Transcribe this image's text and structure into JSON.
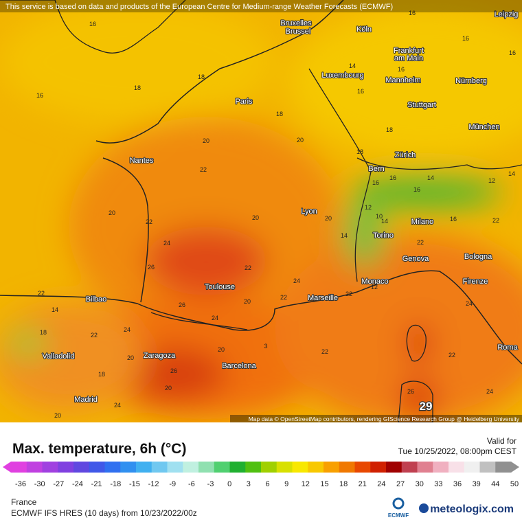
{
  "banner": "This service is based on data and products of the European Centre for Medium-range Weather Forecasts (ECMWF)",
  "attribution": "Map data © OpenStreetMap contributors, rendering GIScience Research Group @ Heidelberg University",
  "cities": [
    "Bruxelles",
    "Brussel",
    "Köln",
    "Leipzig",
    "Frankfurt",
    "am Main",
    "Luxembourg",
    "Mannheim",
    "Nürnberg",
    "Paris",
    "Stuttgart",
    "München",
    "Nantes",
    "Zürich",
    "Bern",
    "Lyon",
    "Milano",
    "Torino",
    "Bologna",
    "Genova",
    "Toulouse",
    "Monaco",
    "Marseille",
    "Firenze",
    "Bilbao",
    "Valladolid",
    "Zaragoza",
    "Barcelona",
    "Roma",
    "Madrid"
  ],
  "map_values": [
    16,
    16,
    18,
    18,
    18,
    20,
    20,
    22,
    22,
    20,
    24,
    26,
    22,
    20,
    20,
    24,
    22,
    20,
    26,
    24,
    22,
    14,
    18,
    22,
    24,
    20,
    18,
    26,
    20,
    3,
    22,
    22,
    22,
    22,
    16,
    12,
    22,
    16,
    16,
    16,
    14,
    16,
    16,
    18,
    18,
    16,
    16,
    14,
    12,
    14,
    16,
    10,
    14,
    14,
    12,
    24,
    24,
    24,
    20,
    26,
    20
  ],
  "highlight_value": 29,
  "title": "Max. temperature, 6h (°C)",
  "valid_label": "Valid for",
  "valid_time": "Tue 10/25/2022, 08:00pm CEST",
  "legend": {
    "ticks": [
      -36,
      -30,
      -27,
      -24,
      -21,
      -18,
      -15,
      -12,
      -9,
      -6,
      -3,
      0,
      3,
      6,
      9,
      12,
      15,
      18,
      21,
      24,
      27,
      30,
      33,
      36,
      39,
      44,
      50
    ],
    "colors": [
      "#e040e0",
      "#c040e0",
      "#a040e0",
      "#8040e0",
      "#6048e0",
      "#4058e8",
      "#3070f0",
      "#3090f0",
      "#40b0f0",
      "#70c8f0",
      "#a0e0f0",
      "#c0f0e0",
      "#90e0b0",
      "#50d070",
      "#20b030",
      "#50c010",
      "#a0d000",
      "#d8e000",
      "#f8e800",
      "#f8c800",
      "#f8a000",
      "#f07800",
      "#e84800",
      "#d02000",
      "#a00000",
      "#c04050",
      "#e08090",
      "#f0b0c0",
      "#f8e0e8",
      "#f0f0f0",
      "#c0c0c0",
      "#909090"
    ]
  },
  "region": "France",
  "model": "ECMWF IFS HRES (10 days) from 10/23/2022/00z",
  "logo_ecmwf": "ECMWF",
  "brand": "meteologix.com"
}
